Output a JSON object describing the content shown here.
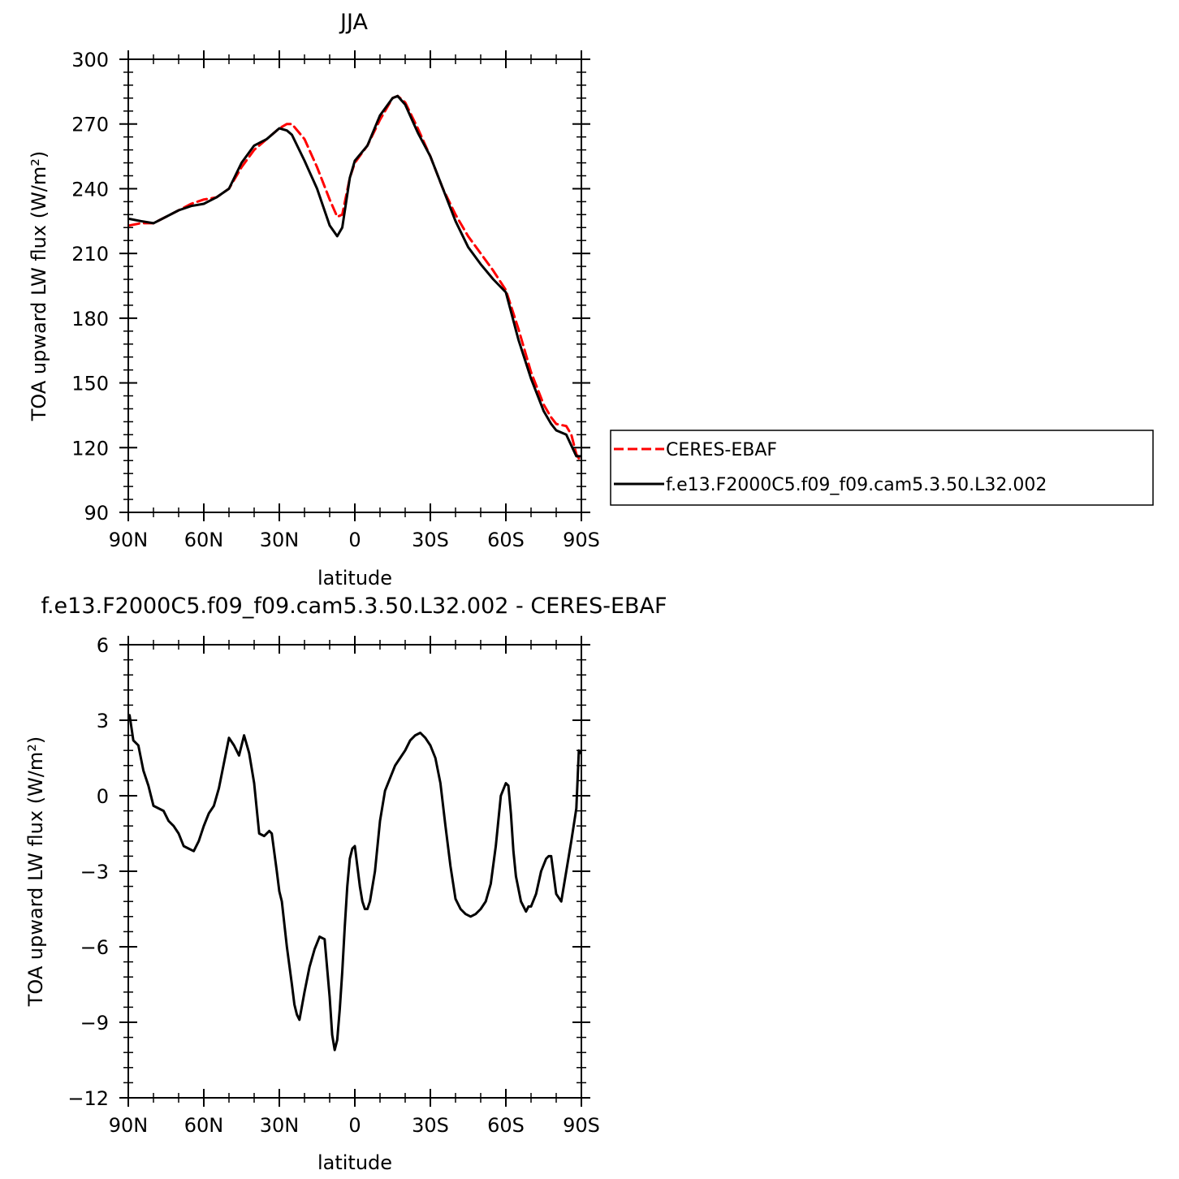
{
  "chart_data": [
    {
      "type": "line",
      "title": "JJA",
      "xlabel": "latitude",
      "ylabel": "TOA upward LW flux (W/m²)",
      "xlim": [
        90,
        -90
      ],
      "ylim": [
        90,
        300
      ],
      "x_ticks": [
        90,
        60,
        30,
        0,
        -30,
        -60,
        -90
      ],
      "x_tick_labels": [
        "90N",
        "60N",
        "30N",
        "0",
        "30S",
        "60S",
        "90S"
      ],
      "y_ticks": [
        90,
        120,
        150,
        180,
        210,
        240,
        270,
        300
      ],
      "y_tick_labels": [
        "90",
        "120",
        "150",
        "180",
        "210",
        "240",
        "270",
        "300"
      ],
      "legend_position": "right",
      "series": [
        {
          "name": "CERES-EBAF",
          "color": "#ff0000",
          "dash": "dashed",
          "x": [
            89.5,
            85,
            80,
            75,
            70,
            65,
            60,
            55,
            50,
            45,
            40,
            35,
            30,
            27,
            25,
            20,
            15,
            10,
            7,
            5,
            2,
            0,
            -5,
            -10,
            -15,
            -17,
            -20,
            -25,
            -30,
            -35,
            -40,
            -45,
            -50,
            -55,
            -60,
            -65,
            -70,
            -75,
            -78,
            -80,
            -84,
            -86,
            -88,
            -89.5
          ],
          "y": [
            223,
            224,
            224,
            227,
            230,
            233,
            235,
            236,
            240,
            250,
            258,
            263,
            268,
            270,
            270,
            263,
            250,
            235,
            227,
            228,
            245,
            252,
            260,
            272,
            282,
            283,
            280,
            268,
            255,
            240,
            228,
            218,
            210,
            202,
            193,
            175,
            155,
            140,
            134,
            131,
            130,
            126,
            117,
            114
          ]
        },
        {
          "name": "f.e13.F2000C5.f09_f09.cam5.3.50.L32.002",
          "color": "#000000",
          "dash": "solid",
          "x": [
            89.5,
            85,
            80,
            75,
            70,
            65,
            60,
            55,
            50,
            45,
            40,
            35,
            30,
            27,
            25,
            20,
            15,
            10,
            7,
            5,
            2,
            0,
            -5,
            -10,
            -15,
            -17,
            -20,
            -25,
            -30,
            -35,
            -40,
            -45,
            -50,
            -55,
            -60,
            -65,
            -70,
            -75,
            -78,
            -80,
            -84,
            -86,
            -88,
            -89.5
          ],
          "y": [
            226,
            225,
            224,
            227,
            230,
            232,
            233,
            236,
            240,
            252,
            260,
            263,
            268,
            267,
            265,
            253,
            240,
            223,
            218,
            222,
            245,
            253,
            260,
            274,
            282,
            283,
            279,
            266,
            255,
            240,
            225,
            213,
            205,
            198,
            192,
            170,
            152,
            137,
            131,
            128,
            126,
            121,
            116,
            116
          ]
        }
      ]
    },
    {
      "type": "line",
      "title": "f.e13.F2000C5.f09_f09.cam5.3.50.L32.002 - CERES-EBAF",
      "xlabel": "latitude",
      "ylabel": "TOA upward LW flux (W/m²)",
      "xlim": [
        90,
        -90
      ],
      "ylim": [
        -12,
        6
      ],
      "x_ticks": [
        90,
        60,
        30,
        0,
        -30,
        -60,
        -90
      ],
      "x_tick_labels": [
        "90N",
        "60N",
        "30N",
        "0",
        "30S",
        "60S",
        "90S"
      ],
      "y_ticks": [
        -12,
        -9,
        -6,
        -3,
        0,
        3,
        6
      ],
      "y_tick_labels": [
        "−12",
        "−9",
        "−6",
        "−3",
        "0",
        "3",
        "6"
      ],
      "series": [
        {
          "color": "#000000",
          "dash": "solid",
          "x": [
            89.5,
            88,
            86,
            84,
            82,
            80,
            78,
            76,
            74,
            72,
            70,
            68,
            66,
            64,
            62,
            60,
            58,
            56,
            54,
            52,
            50,
            48,
            46,
            44,
            42,
            40,
            38,
            36,
            34,
            33,
            31,
            30,
            29,
            27,
            25,
            24,
            23,
            22,
            20,
            18,
            16,
            14,
            12,
            10,
            9,
            8,
            7,
            6,
            5,
            4,
            3,
            2,
            1,
            0,
            -1,
            -2,
            -3,
            -4,
            -5,
            -6,
            -8,
            -10,
            -12,
            -14,
            -16,
            -18,
            -20,
            -22,
            -24,
            -26,
            -28,
            -30,
            -32,
            -34,
            -36,
            -38,
            -40,
            -42,
            -44,
            -46,
            -48,
            -50,
            -52,
            -54,
            -56,
            -58,
            -60,
            -61,
            -62,
            -63,
            -64,
            -66,
            -68,
            -69,
            -70,
            -72,
            -74,
            -76,
            -77,
            -78,
            -80,
            -82,
            -84,
            -86,
            -88,
            -89,
            -89.5
          ],
          "y": [
            3.2,
            2.2,
            2.0,
            1.0,
            0.4,
            -0.4,
            -0.5,
            -0.6,
            -1.0,
            -1.2,
            -1.5,
            -2.0,
            -2.1,
            -2.2,
            -1.8,
            -1.2,
            -0.7,
            -0.4,
            0.3,
            1.3,
            2.3,
            2.0,
            1.6,
            2.4,
            1.7,
            0.5,
            -1.5,
            -1.6,
            -1.4,
            -1.5,
            -3.0,
            -3.8,
            -4.2,
            -6.0,
            -7.5,
            -8.3,
            -8.7,
            -8.9,
            -7.8,
            -6.8,
            -6.1,
            -5.6,
            -5.7,
            -8.0,
            -9.5,
            -10.1,
            -9.7,
            -8.5,
            -7.0,
            -5.2,
            -3.6,
            -2.5,
            -2.1,
            -2.0,
            -2.8,
            -3.6,
            -4.2,
            -4.5,
            -4.5,
            -4.2,
            -3.0,
            -1.0,
            0.2,
            0.7,
            1.2,
            1.5,
            1.8,
            2.2,
            2.4,
            2.5,
            2.3,
            2.0,
            1.5,
            0.5,
            -1.2,
            -2.8,
            -4.1,
            -4.5,
            -4.7,
            -4.8,
            -4.7,
            -4.5,
            -4.2,
            -3.5,
            -2.0,
            0.0,
            0.5,
            0.4,
            -0.7,
            -2.2,
            -3.2,
            -4.2,
            -4.6,
            -4.4,
            -4.4,
            -3.9,
            -3.0,
            -2.5,
            -2.4,
            -2.4,
            -3.9,
            -4.2,
            -3.0,
            -1.8,
            -0.5,
            1.8,
            1.7
          ]
        }
      ]
    }
  ]
}
